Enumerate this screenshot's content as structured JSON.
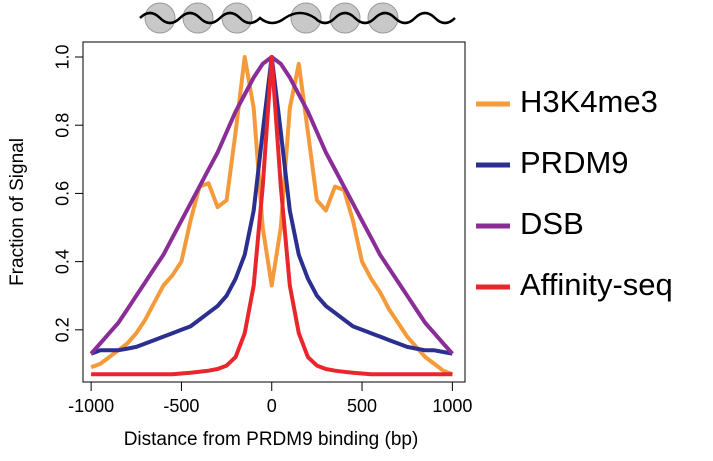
{
  "chart_data": {
    "type": "line",
    "xlabel": "Distance from PRDM9 binding (bp)",
    "ylabel": "Fraction of Signal",
    "x": [
      -1000,
      -950,
      -900,
      -850,
      -800,
      -750,
      -700,
      -650,
      -600,
      -550,
      -500,
      -450,
      -400,
      -350,
      -300,
      -250,
      -200,
      -150,
      -100,
      -50,
      0,
      50,
      100,
      150,
      200,
      250,
      300,
      350,
      400,
      450,
      500,
      550,
      600,
      650,
      700,
      750,
      800,
      850,
      900,
      950,
      1000
    ],
    "series": [
      {
        "name": "H3K4me3",
        "color": "#f59a3a",
        "values": [
          0.09,
          0.1,
          0.12,
          0.14,
          0.16,
          0.19,
          0.23,
          0.28,
          0.33,
          0.36,
          0.4,
          0.52,
          0.62,
          0.63,
          0.56,
          0.58,
          0.78,
          1.0,
          0.85,
          0.5,
          0.33,
          0.5,
          0.85,
          0.98,
          0.78,
          0.58,
          0.55,
          0.62,
          0.61,
          0.52,
          0.4,
          0.35,
          0.31,
          0.26,
          0.22,
          0.18,
          0.15,
          0.12,
          0.1,
          0.08,
          0.07
        ]
      },
      {
        "name": "PRDM9",
        "color": "#2b2f8f",
        "values": [
          0.13,
          0.14,
          0.14,
          0.14,
          0.145,
          0.15,
          0.16,
          0.17,
          0.18,
          0.19,
          0.2,
          0.21,
          0.23,
          0.25,
          0.27,
          0.3,
          0.35,
          0.42,
          0.55,
          0.78,
          1.0,
          0.78,
          0.55,
          0.42,
          0.35,
          0.3,
          0.27,
          0.25,
          0.23,
          0.21,
          0.2,
          0.19,
          0.18,
          0.17,
          0.16,
          0.15,
          0.145,
          0.14,
          0.14,
          0.135,
          0.13
        ]
      },
      {
        "name": "DSB",
        "color": "#8a2d96",
        "values": [
          0.13,
          0.16,
          0.19,
          0.22,
          0.26,
          0.3,
          0.34,
          0.38,
          0.42,
          0.47,
          0.52,
          0.57,
          0.62,
          0.67,
          0.72,
          0.78,
          0.84,
          0.89,
          0.94,
          0.98,
          1.0,
          0.98,
          0.94,
          0.89,
          0.84,
          0.78,
          0.72,
          0.67,
          0.62,
          0.57,
          0.52,
          0.47,
          0.42,
          0.38,
          0.34,
          0.3,
          0.26,
          0.22,
          0.19,
          0.16,
          0.13
        ]
      },
      {
        "name": "Affinity-seq",
        "color": "#e8262c",
        "values": [
          0.07,
          0.07,
          0.07,
          0.07,
          0.07,
          0.07,
          0.07,
          0.07,
          0.07,
          0.07,
          0.072,
          0.074,
          0.077,
          0.08,
          0.085,
          0.095,
          0.12,
          0.19,
          0.33,
          0.62,
          1.0,
          0.62,
          0.33,
          0.19,
          0.12,
          0.095,
          0.085,
          0.08,
          0.077,
          0.074,
          0.072,
          0.07,
          0.07,
          0.07,
          0.07,
          0.07,
          0.07,
          0.07,
          0.07,
          0.07,
          0.07
        ]
      }
    ],
    "xlim": [
      -1045,
      1070
    ],
    "ylim": [
      0.047,
      1.044
    ],
    "xticks": [
      -1000,
      -500,
      0,
      500,
      1000
    ],
    "yticks": [
      0.2,
      0.4,
      0.6,
      0.8,
      {
        "value": 1,
        "label": "1.0"
      }
    ]
  }
}
